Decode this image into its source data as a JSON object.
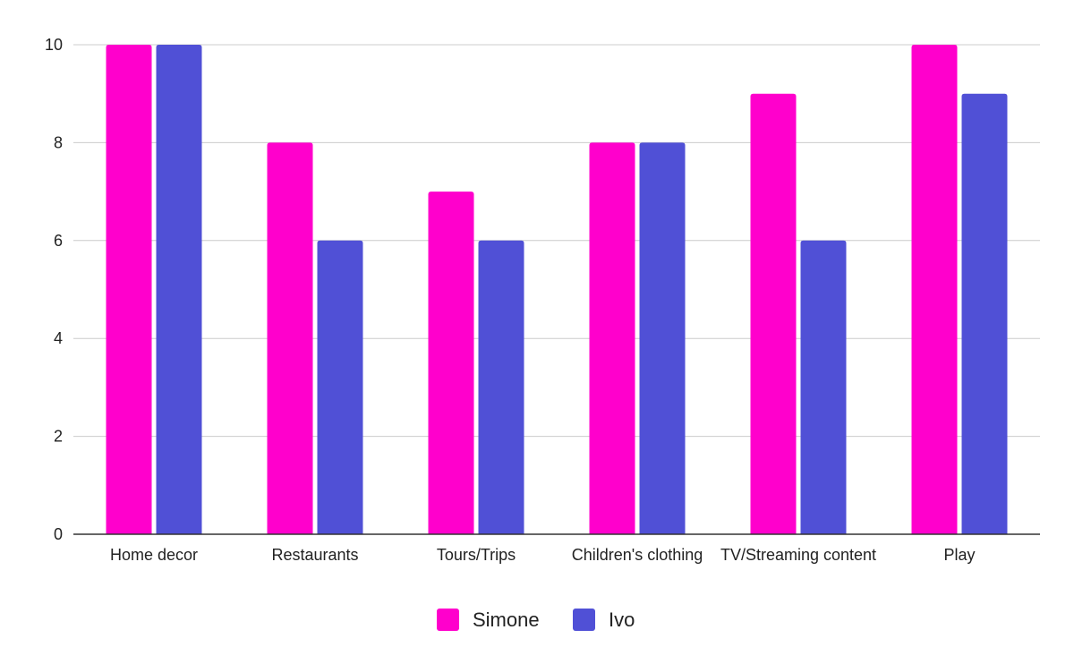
{
  "chart_data": {
    "type": "bar",
    "categories": [
      "Home decor",
      "Restaurants",
      "Tours/Trips",
      "Children's clothing",
      "TV/Streaming content",
      "Play"
    ],
    "series": [
      {
        "name": "Simone",
        "values": [
          10,
          8,
          7,
          8,
          9,
          10
        ],
        "color": "#ff00cc"
      },
      {
        "name": "Ivo",
        "values": [
          10,
          6,
          6,
          8,
          6,
          9
        ],
        "color": "#5050d6"
      }
    ],
    "ylim": [
      0,
      10
    ],
    "yticks": [
      0,
      2,
      4,
      6,
      8,
      10
    ],
    "title": "",
    "xlabel": "",
    "ylabel": "",
    "grid": true,
    "legend_position": "bottom-center"
  }
}
